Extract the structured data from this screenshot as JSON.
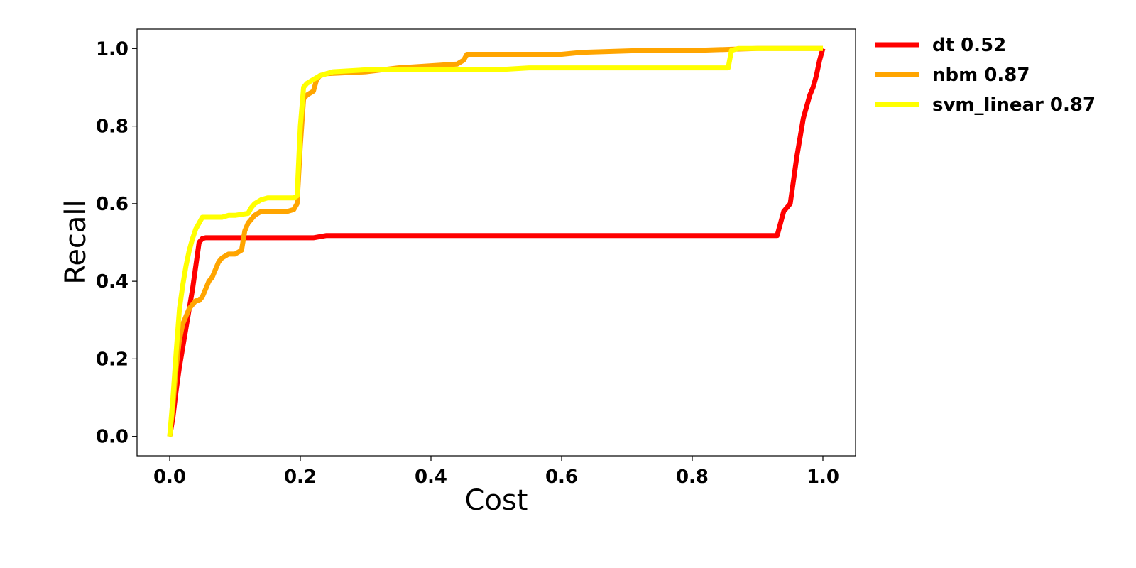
{
  "chart_data": {
    "type": "line",
    "xlabel": "Cost",
    "ylabel": "Recall",
    "xlim": [
      -0.05,
      1.05
    ],
    "ylim": [
      -0.05,
      1.05
    ],
    "xticks": [
      0.0,
      0.2,
      0.4,
      0.6,
      0.8,
      1.0
    ],
    "yticks": [
      0.0,
      0.2,
      0.4,
      0.6,
      0.8,
      1.0
    ],
    "xtick_labels": [
      "0.0",
      "0.2",
      "0.4",
      "0.6",
      "0.8",
      "1.0"
    ],
    "ytick_labels": [
      "0.0",
      "0.2",
      "0.4",
      "0.6",
      "0.8",
      "1.0"
    ],
    "grid": false,
    "legend_position": "outside-top-right",
    "series": [
      {
        "name": "dt 0.52",
        "color": "#ff0000",
        "x": [
          0.0,
          0.005,
          0.01,
          0.015,
          0.02,
          0.025,
          0.03,
          0.035,
          0.04,
          0.045,
          0.05,
          0.055,
          0.1,
          0.15,
          0.2,
          0.22,
          0.23,
          0.24,
          0.4,
          0.6,
          0.8,
          0.9,
          0.93,
          0.94,
          0.95,
          0.96,
          0.97,
          0.98,
          0.985,
          0.99,
          0.995,
          1.0
        ],
        "y": [
          0.0,
          0.05,
          0.12,
          0.18,
          0.23,
          0.28,
          0.33,
          0.38,
          0.44,
          0.5,
          0.51,
          0.512,
          0.512,
          0.512,
          0.512,
          0.512,
          0.515,
          0.518,
          0.518,
          0.518,
          0.518,
          0.518,
          0.518,
          0.58,
          0.6,
          0.72,
          0.82,
          0.88,
          0.9,
          0.93,
          0.97,
          1.0
        ]
      },
      {
        "name": "nbm 0.87",
        "color": "#ffa500",
        "x": [
          0.0,
          0.005,
          0.01,
          0.015,
          0.02,
          0.025,
          0.03,
          0.035,
          0.04,
          0.045,
          0.05,
          0.055,
          0.06,
          0.065,
          0.07,
          0.075,
          0.08,
          0.085,
          0.09,
          0.1,
          0.11,
          0.115,
          0.12,
          0.125,
          0.13,
          0.14,
          0.16,
          0.18,
          0.19,
          0.195,
          0.2,
          0.205,
          0.21,
          0.22,
          0.225,
          0.23,
          0.24,
          0.3,
          0.35,
          0.44,
          0.45,
          0.455,
          0.6,
          0.63,
          0.72,
          0.8,
          0.86,
          0.9,
          0.95,
          1.0
        ],
        "y": [
          0.0,
          0.08,
          0.18,
          0.25,
          0.29,
          0.31,
          0.33,
          0.34,
          0.35,
          0.35,
          0.36,
          0.38,
          0.4,
          0.41,
          0.43,
          0.45,
          0.46,
          0.465,
          0.47,
          0.47,
          0.48,
          0.53,
          0.55,
          0.56,
          0.57,
          0.58,
          0.58,
          0.58,
          0.585,
          0.6,
          0.75,
          0.87,
          0.88,
          0.89,
          0.92,
          0.93,
          0.935,
          0.94,
          0.95,
          0.96,
          0.97,
          0.985,
          0.985,
          0.99,
          0.995,
          0.995,
          0.998,
          1.0,
          1.0,
          1.0
        ]
      },
      {
        "name": "svm_linear 0.87",
        "color": "#ffff00",
        "x": [
          0.0,
          0.005,
          0.01,
          0.015,
          0.02,
          0.025,
          0.03,
          0.035,
          0.04,
          0.045,
          0.05,
          0.06,
          0.08,
          0.09,
          0.1,
          0.12,
          0.125,
          0.13,
          0.14,
          0.15,
          0.18,
          0.19,
          0.195,
          0.2,
          0.205,
          0.21,
          0.22,
          0.23,
          0.25,
          0.3,
          0.4,
          0.5,
          0.55,
          0.6,
          0.7,
          0.8,
          0.855,
          0.86,
          0.87,
          0.9,
          1.0
        ],
        "y": [
          0.0,
          0.1,
          0.22,
          0.33,
          0.39,
          0.44,
          0.48,
          0.51,
          0.535,
          0.55,
          0.565,
          0.565,
          0.565,
          0.57,
          0.57,
          0.575,
          0.59,
          0.6,
          0.61,
          0.615,
          0.615,
          0.615,
          0.62,
          0.8,
          0.9,
          0.91,
          0.92,
          0.93,
          0.94,
          0.945,
          0.945,
          0.945,
          0.95,
          0.95,
          0.95,
          0.95,
          0.95,
          0.995,
          1.0,
          1.0,
          1.0
        ]
      }
    ]
  }
}
